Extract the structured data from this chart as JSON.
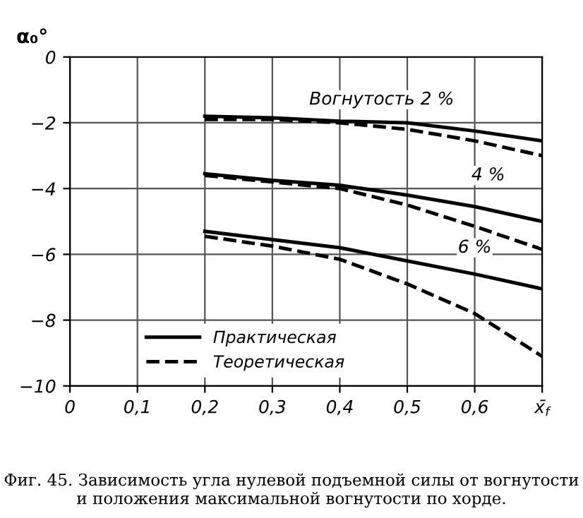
{
  "chart_data": {
    "type": "line",
    "ylabel": "α₀°",
    "x": [
      0.2,
      0.3,
      0.4,
      0.5,
      0.6,
      0.7
    ],
    "series": [
      {
        "name": "Практическая",
        "color": "#000000",
        "line_style": "solid",
        "values": [
          -1.8,
          -1.85,
          -1.95,
          -2.0,
          -2.25,
          -2.55
        ]
      },
      {
        "name": "Теоретическая",
        "color": "#000000",
        "line_style": "dashed",
        "values": [
          -1.9,
          -1.9,
          -2.0,
          -2.2,
          -2.55,
          -3.0
        ]
      },
      {
        "color": "#000000",
        "line_style": "solid",
        "values": [
          -3.55,
          -3.75,
          -3.9,
          -4.2,
          -4.55,
          -5.0
        ]
      },
      {
        "color": "#000000",
        "line_style": "dashed",
        "values": [
          -3.6,
          -3.8,
          -4.0,
          -4.5,
          -5.15,
          -5.85
        ]
      },
      {
        "color": "#000000",
        "line_style": "solid",
        "values": [
          -5.3,
          -5.55,
          -5.8,
          -6.2,
          -6.6,
          -7.05
        ]
      },
      {
        "color": "#000000",
        "line_style": "dashed",
        "values": [
          -5.45,
          -5.75,
          -6.15,
          -6.9,
          -7.8,
          -9.1
        ]
      }
    ],
    "xlim": [
      0,
      0.7
    ],
    "ylim": [
      -10,
      0
    ],
    "xticks": [
      0,
      {
        "value": 0.1,
        "label": "0,1"
      },
      {
        "value": 0.2,
        "label": "0,2"
      },
      {
        "value": 0.3,
        "label": "0,3"
      },
      {
        "value": 0.4,
        "label": "0,4"
      },
      {
        "value": 0.5,
        "label": "0,5"
      },
      {
        "value": 0.6,
        "label": "0,6"
      },
      {
        "value": 0.7,
        "label": "x̄$_{f}$"
      }
    ],
    "yticks": [
      0,
      {
        "value": -2,
        "label": "−2"
      },
      {
        "value": -4,
        "label": "−4"
      },
      {
        "value": -6,
        "label": "−6"
      },
      {
        "value": -8,
        "label": "−8"
      },
      {
        "value": -10,
        "label": "−10"
      }
    ],
    "grid": true,
    "legend": "bottom left",
    "marker": "none",
    "annotations": [
      "Вогнутость 2 %",
      {
        "text": "4 %",
        "x": 0.62,
        "y": -3.6
      },
      {
        "text": "6 %",
        "x": 0.6,
        "y": -5.8
      },
      "Фиг. 45. Зависимость угла нулевой подъемной силы от вогнутости и положения максимальной вогнутости по хорде."
    ]
  }
}
